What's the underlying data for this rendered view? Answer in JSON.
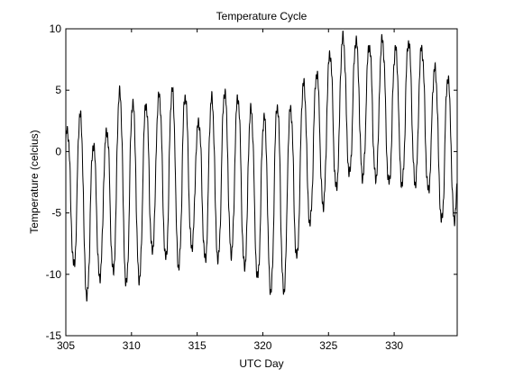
{
  "chart_data": {
    "type": "line",
    "title": "Temperature Cycle",
    "xlabel": "UTC Day",
    "ylabel": "Temperature (celcius)",
    "xlim": [
      305,
      334.8
    ],
    "ylim": [
      -15,
      10
    ],
    "xticks": [
      305,
      310,
      315,
      320,
      325,
      330
    ],
    "yticks": [
      -15,
      -10,
      -5,
      0,
      5,
      10
    ],
    "grid": false,
    "line_color": "#000000",
    "series": [
      {
        "daily_cycles": [
          {
            "day": 305.0,
            "max": 1.5,
            "min": -7.0
          },
          {
            "day": 306.0,
            "max": 3.3,
            "min": -10.8
          },
          {
            "day": 307.0,
            "max": 0.5,
            "min": -12.5
          },
          {
            "day": 308.0,
            "max": 1.3,
            "min": -8.7
          },
          {
            "day": 309.0,
            "max": 4.9,
            "min": -10.5
          },
          {
            "day": 310.0,
            "max": 4.0,
            "min": -11.0
          },
          {
            "day": 311.0,
            "max": 3.8,
            "min": -10.0
          },
          {
            "day": 312.0,
            "max": 4.5,
            "min": -6.8
          },
          {
            "day": 313.0,
            "max": 5.1,
            "min": -10.0
          },
          {
            "day": 314.0,
            "max": 4.8,
            "min": -9.0
          },
          {
            "day": 315.0,
            "max": 2.2,
            "min": -7.0
          },
          {
            "day": 316.0,
            "max": 4.3,
            "min": -10.0
          },
          {
            "day": 317.0,
            "max": 4.9,
            "min": -8.0
          },
          {
            "day": 318.0,
            "max": 4.5,
            "min": -8.5
          },
          {
            "day": 319.0,
            "max": 3.5,
            "min": -10.0
          },
          {
            "day": 320.0,
            "max": 2.7,
            "min": -10.5
          },
          {
            "day": 321.0,
            "max": 3.8,
            "min": -12.0
          },
          {
            "day": 322.0,
            "max": 3.3,
            "min": -11.0
          },
          {
            "day": 323.0,
            "max": 5.5,
            "min": -7.0
          },
          {
            "day": 324.0,
            "max": 6.2,
            "min": -5.0
          },
          {
            "day": 325.0,
            "max": 7.8,
            "min": -4.0
          },
          {
            "day": 326.0,
            "max": 9.3,
            "min": -2.3
          },
          {
            "day": 327.0,
            "max": 9.1,
            "min": -1.5
          },
          {
            "day": 328.0,
            "max": 8.6,
            "min": -2.5
          },
          {
            "day": 329.0,
            "max": 9.2,
            "min": -2.0
          },
          {
            "day": 330.0,
            "max": 8.3,
            "min": -3.0
          },
          {
            "day": 331.0,
            "max": 9.0,
            "min": -2.5
          },
          {
            "day": 332.0,
            "max": 8.6,
            "min": -2.7
          },
          {
            "day": 333.0,
            "max": 6.8,
            "min": -3.5
          },
          {
            "day": 334.0,
            "max": 6.2,
            "min": -7.0
          },
          {
            "day": 334.8,
            "max": 4.4,
            "min": -5.0
          }
        ]
      }
    ]
  }
}
